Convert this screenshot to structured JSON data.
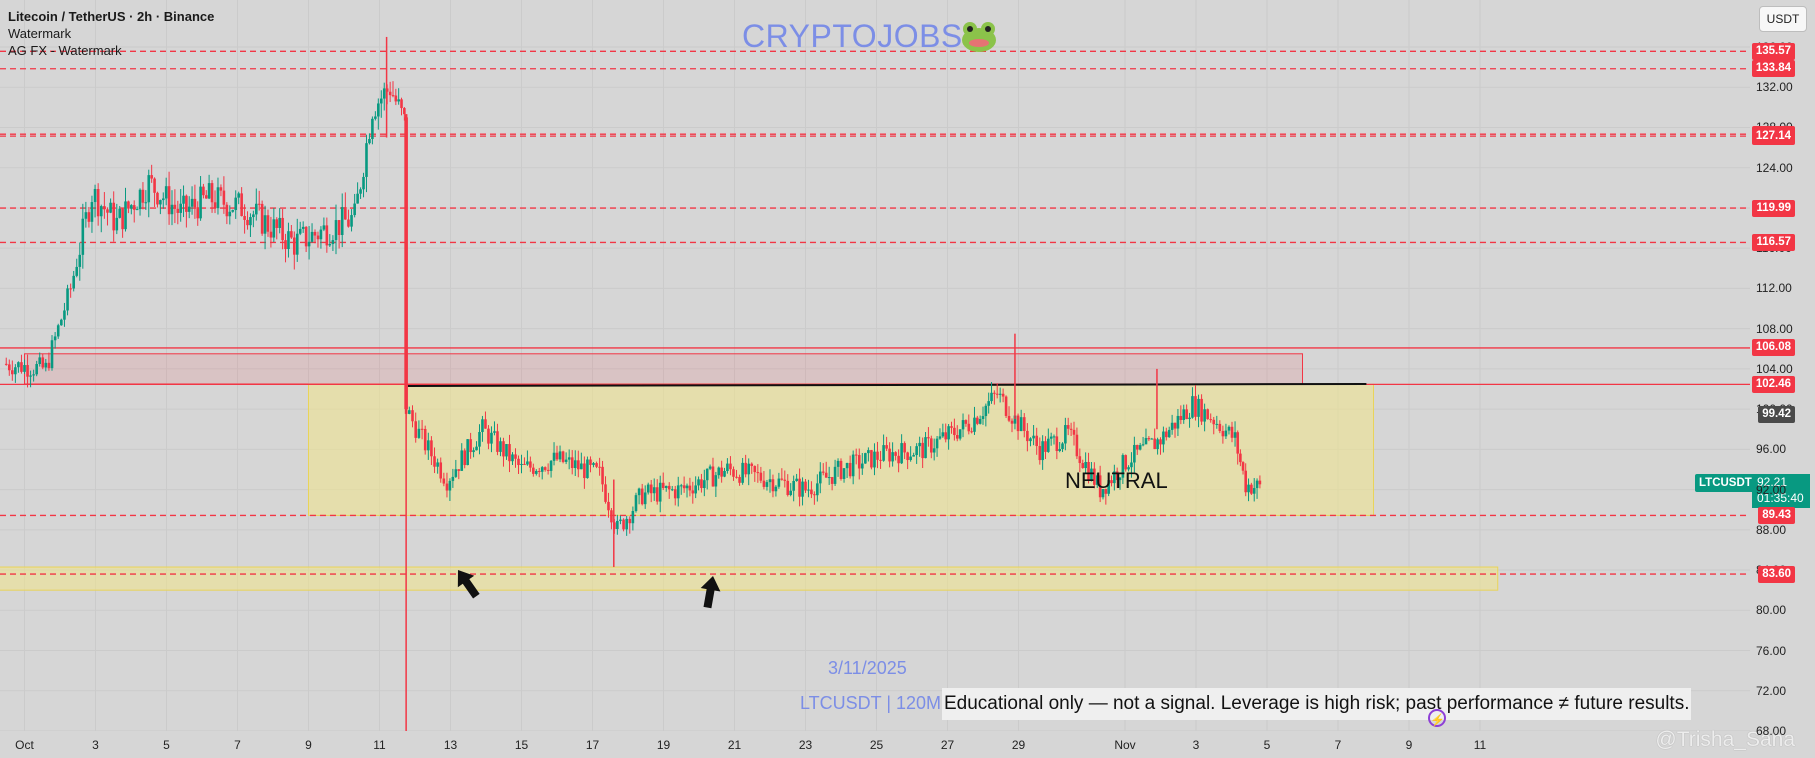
{
  "header": {
    "title": "Litecoin / TetherUS · 2h · Binance",
    "line2": "Watermark",
    "line3": "AG FX - Watermark"
  },
  "watermark": "CRYPTOJOBS",
  "currency_button": "USDT",
  "overlay": {
    "date": "3/11/2025",
    "symbol_interval": "LTCUSDT | 120M",
    "disclaimer": "Educational only — not a signal. Leverage is high risk; past performance ≠ future results.",
    "zone_label": "NEUTRAL",
    "brand": "@Trisha_Saha"
  },
  "ticker": {
    "symbol": "LTCUSDT",
    "price": "92.21",
    "countdown": "01:35:40"
  },
  "colors": {
    "background": "#d6d6d6",
    "up": "#089981",
    "down": "#f23645",
    "level_line": "#f23645",
    "zone": "#f2e58a",
    "watermark": "#7c8ee6"
  },
  "chart_data": {
    "type": "candlestick",
    "symbol": "LTCUSDT",
    "interval": "2h",
    "exchange": "Binance",
    "x_ticks": [
      "Oct",
      "3",
      "5",
      "7",
      "9",
      "11",
      "13",
      "15",
      "17",
      "19",
      "21",
      "23",
      "25",
      "27",
      "29",
      "Nov",
      "3",
      "5",
      "7",
      "9",
      "11"
    ],
    "x_tick_days": [
      0,
      2,
      4,
      6,
      8,
      10,
      12,
      14,
      16,
      18,
      20,
      22,
      24,
      26,
      28,
      31,
      33,
      35,
      37,
      39,
      41
    ],
    "y_ticks": [
      68,
      72,
      76,
      80,
      84,
      88,
      92,
      96,
      100,
      104,
      108,
      112,
      116,
      120,
      124,
      128,
      132,
      136
    ],
    "y_range": [
      68,
      138
    ],
    "price_levels": [
      {
        "value": 135.57,
        "label": "135.57",
        "style": "dashed"
      },
      {
        "value": 133.84,
        "label": "133.84",
        "style": "dashed"
      },
      {
        "value": 127.33,
        "label": "127.33",
        "style": "dashed"
      },
      {
        "value": 127.14,
        "label": "127.14",
        "style": "dashed"
      },
      {
        "value": 119.99,
        "label": "119.99",
        "style": "dashed"
      },
      {
        "value": 116.57,
        "label": "116.57",
        "style": "dashed"
      },
      {
        "value": 106.08,
        "label": "106.08",
        "style": "solid"
      },
      {
        "value": 102.46,
        "label": "102.46",
        "style": "solid"
      },
      {
        "value": 89.43,
        "label": "89.43",
        "style": "dashed"
      },
      {
        "value": 83.6,
        "label": "83.60",
        "style": "dashed"
      }
    ],
    "gray_level": {
      "value": 99.42,
      "label": "99.42"
    },
    "last_price": 92.21,
    "zones": [
      {
        "name": "resistance",
        "from_day": 0,
        "to_day": 36,
        "low": 102.5,
        "high": 105.5,
        "color": "red"
      },
      {
        "name": "neutral-range",
        "from_day": 8.0,
        "to_day": 38.0,
        "low": 89.43,
        "high": 102.46,
        "color": "yellow"
      },
      {
        "name": "support",
        "from_day": -1,
        "to_day": 41.5,
        "low": 82.0,
        "high": 84.3,
        "color": "yellow"
      }
    ],
    "path": [
      [
        -0.6,
        104.5
      ],
      [
        0.6,
        104.0
      ],
      [
        1.3,
        112.0
      ],
      [
        1.9,
        121.5
      ],
      [
        2.6,
        118.5
      ],
      [
        3.5,
        122.5
      ],
      [
        4.4,
        119.5
      ],
      [
        5.2,
        121.0
      ],
      [
        6.2,
        120.0
      ],
      [
        7.6,
        116.5
      ],
      [
        8.6,
        118.0
      ],
      [
        9.3,
        119.0
      ],
      [
        9.8,
        130.0
      ],
      [
        10.3,
        132.0
      ],
      [
        10.7,
        128.5
      ],
      [
        10.75,
        100.0
      ],
      [
        11.2,
        97.0
      ],
      [
        11.9,
        93.0
      ],
      [
        12.9,
        98.0
      ],
      [
        14.0,
        94.0
      ],
      [
        15.0,
        95.0
      ],
      [
        16.2,
        93.5
      ],
      [
        16.7,
        88.0
      ],
      [
        17.4,
        91.5
      ],
      [
        18.5,
        92.0
      ],
      [
        19.8,
        94.0
      ],
      [
        21.0,
        93.0
      ],
      [
        22.0,
        92.0
      ],
      [
        23.0,
        94.0
      ],
      [
        24.2,
        95.5
      ],
      [
        25.3,
        96.0
      ],
      [
        26.6,
        98.5
      ],
      [
        27.4,
        101.5
      ],
      [
        27.9,
        99.0
      ],
      [
        28.6,
        96.0
      ],
      [
        29.4,
        97.5
      ],
      [
        30.3,
        92.0
      ],
      [
        31.1,
        95.0
      ],
      [
        32.0,
        97.0
      ],
      [
        32.9,
        100.5
      ],
      [
        33.5,
        99.0
      ],
      [
        34.1,
        97.0
      ],
      [
        34.4,
        92.5
      ],
      [
        34.8,
        92.21
      ]
    ],
    "events": [
      {
        "day": 10.75,
        "low": 68.0,
        "high": 104.0
      },
      {
        "day": 16.6,
        "low": 84.3,
        "high": 93.0
      },
      {
        "day": 27.9,
        "low": 99.0,
        "high": 107.5
      },
      {
        "day": 31.9,
        "low": 98.0,
        "high": 104.0
      },
      {
        "day": 10.2,
        "low": 127.0,
        "high": 137.0
      }
    ],
    "trendline": {
      "from_day": 10.8,
      "to_day": 37.8,
      "value": 102.4
    }
  }
}
